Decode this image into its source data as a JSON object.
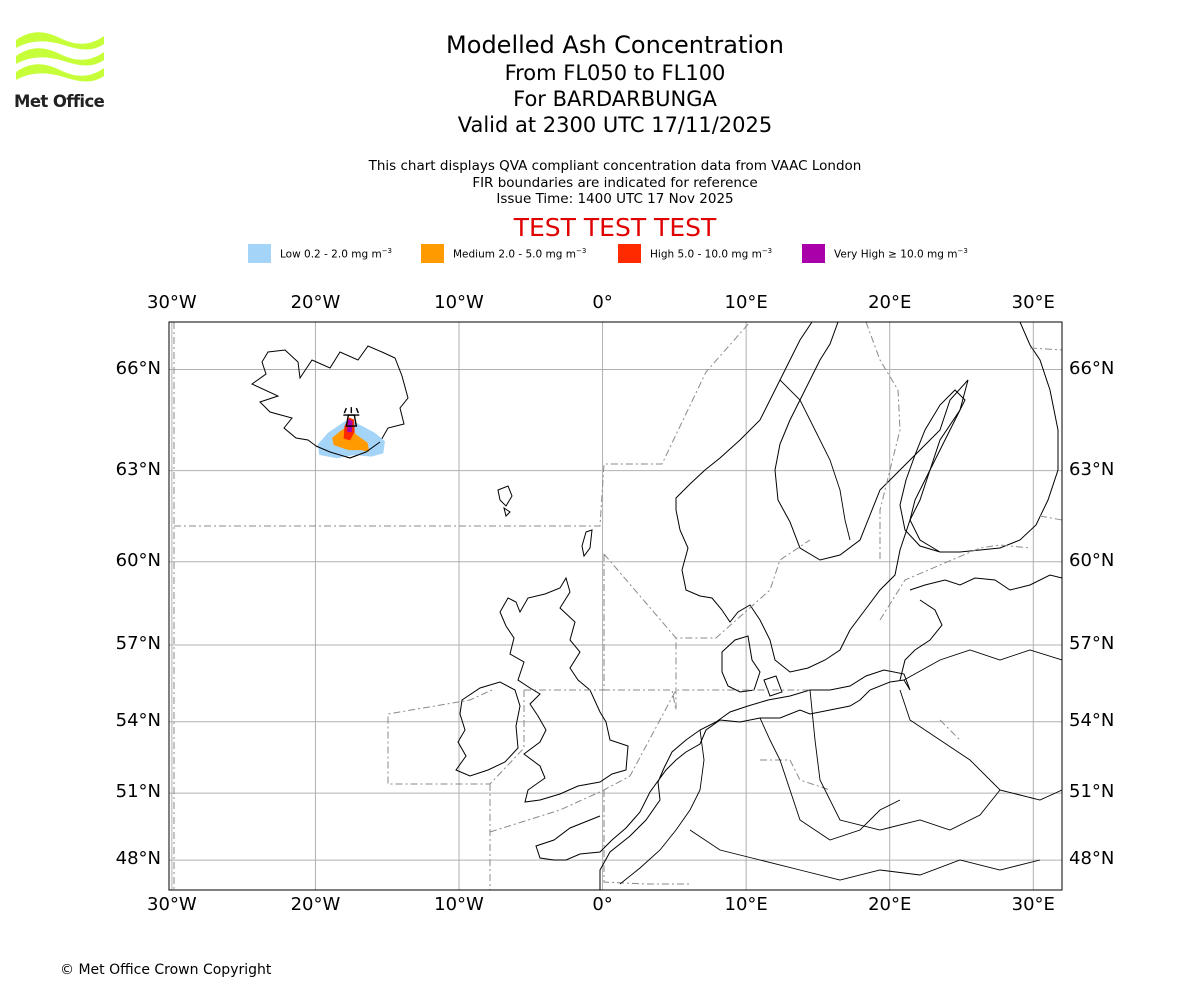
{
  "header": {
    "title": "Modelled Ash Concentration",
    "levels": "From FL050 to FL100",
    "volcano": "For BARDARBUNGA",
    "valid": "Valid at 2300 UTC 17/11/2025"
  },
  "notes": {
    "line1": "This chart displays QVA compliant concentration data from VAAC London",
    "line2": "FIR boundaries are indicated for reference",
    "line3": "Issue Time: 1400 UTC 17 Nov 2025"
  },
  "test_banner": "TEST TEST TEST",
  "legend": [
    {
      "label": "Low 0.2 - 2.0 mg m",
      "exp": "−3",
      "color": "#a5d4f9"
    },
    {
      "label": "Medium 2.0 - 5.0 mg m",
      "exp": "−3",
      "color": "#ff9a00"
    },
    {
      "label": "High 5.0 - 10.0 mg m",
      "exp": "−3",
      "color": "#ff2a00"
    },
    {
      "label": "Very High  ≥  10.0 mg m",
      "exp": "−3",
      "color": "#aa00aa"
    }
  ],
  "logo": {
    "text": "Met Office",
    "color": "#c6ff3a"
  },
  "copyright": "© Met Office Crown Copyright",
  "map": {
    "lon_range": [
      -30.2,
      32
    ],
    "lat_range": [
      46.6,
      67.3
    ],
    "lon_ticks": [
      {
        "value": -30,
        "label": "30°W"
      },
      {
        "value": -20,
        "label": "20°W"
      },
      {
        "value": -10,
        "label": "10°W"
      },
      {
        "value": 0,
        "label": "0°"
      },
      {
        "value": 10,
        "label": "10°E"
      },
      {
        "value": 20,
        "label": "20°E"
      },
      {
        "value": 30,
        "label": "30°E"
      }
    ],
    "lat_ticks": [
      {
        "value": 66,
        "label": "66°N"
      },
      {
        "value": 63,
        "label": "63°N"
      },
      {
        "value": 60,
        "label": "60°N"
      },
      {
        "value": 57,
        "label": "57°N"
      },
      {
        "value": 54,
        "label": "54°N"
      },
      {
        "value": 51,
        "label": "51°N"
      },
      {
        "value": 48,
        "label": "48°N"
      }
    ],
    "volcano": {
      "name": "Bardarbunga",
      "lon": -17.5,
      "lat": 64.6
    },
    "ash": {
      "low": [
        [
          -19.7,
          63.5
        ],
        [
          -18.5,
          63.4
        ],
        [
          -17.3,
          63.5
        ],
        [
          -16.1,
          63.45
        ],
        [
          -15.3,
          63.55
        ],
        [
          -15.2,
          63.9
        ],
        [
          -15.9,
          64.15
        ],
        [
          -17.2,
          64.45
        ],
        [
          -17.9,
          64.5
        ],
        [
          -19.1,
          64.15
        ],
        [
          -19.8,
          63.8
        ]
      ],
      "medium": [
        [
          -18.7,
          63.8
        ],
        [
          -17.7,
          63.65
        ],
        [
          -16.8,
          63.65
        ],
        [
          -16.3,
          63.6
        ],
        [
          -16.4,
          63.85
        ],
        [
          -17.2,
          64.1
        ],
        [
          -17.5,
          64.3
        ],
        [
          -18.1,
          64.25
        ],
        [
          -18.8,
          64.0
        ]
      ],
      "high": [
        [
          -18.0,
          64.0
        ],
        [
          -17.6,
          63.95
        ],
        [
          -17.3,
          64.2
        ],
        [
          -17.35,
          64.55
        ],
        [
          -17.65,
          64.6
        ],
        [
          -17.95,
          64.35
        ]
      ],
      "very_high": [
        [
          -17.75,
          64.2
        ],
        [
          -17.5,
          64.2
        ],
        [
          -17.45,
          64.5
        ],
        [
          -17.7,
          64.55
        ]
      ]
    }
  }
}
